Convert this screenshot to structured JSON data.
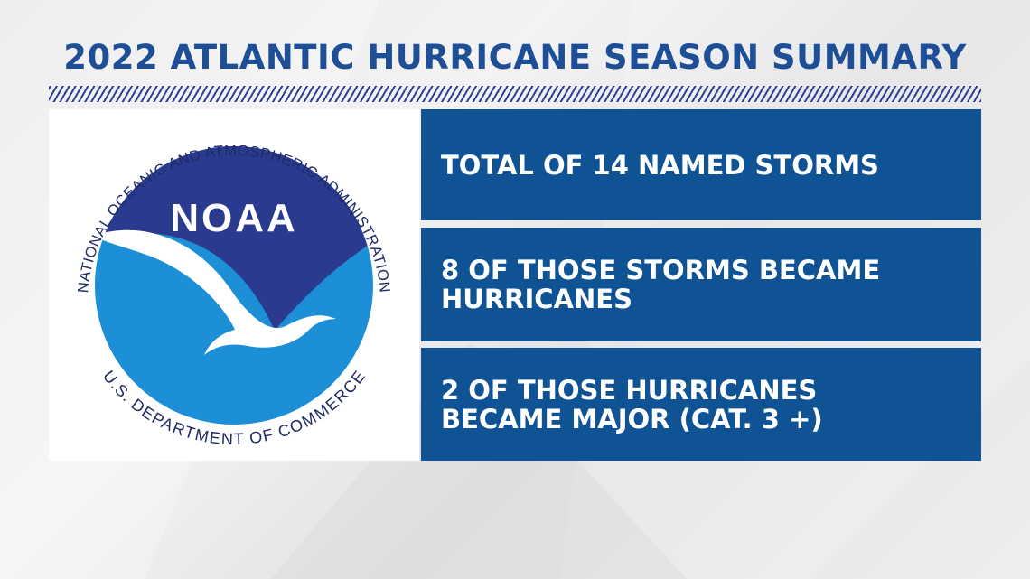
{
  "title": "2022 ATLANTIC HURRICANE SEASON SUMMARY",
  "logo": {
    "center_text": "NOAA",
    "ring_top_text": "NATIONAL OCEANIC AND ATMOSPHERIC ADMINISTRATION",
    "ring_bottom_text": "U.S. DEPARTMENT OF COMMERCE",
    "colors": {
      "navy": "#2a3b8f",
      "blue": "#1c8fd6",
      "text": "#1f2a66"
    }
  },
  "facts": [
    {
      "text": "TOTAL OF 14 NAMED STORMS"
    },
    {
      "text": "8 OF THOSE STORMS BECAME HURRICANES"
    },
    {
      "text": "2 OF THOSE HURRICANES BECAME MAJOR (CAT. 3 +)"
    }
  ],
  "colors": {
    "title": "#1e4f96",
    "panel": "#0f5394",
    "hatch": "#2b3f94"
  }
}
